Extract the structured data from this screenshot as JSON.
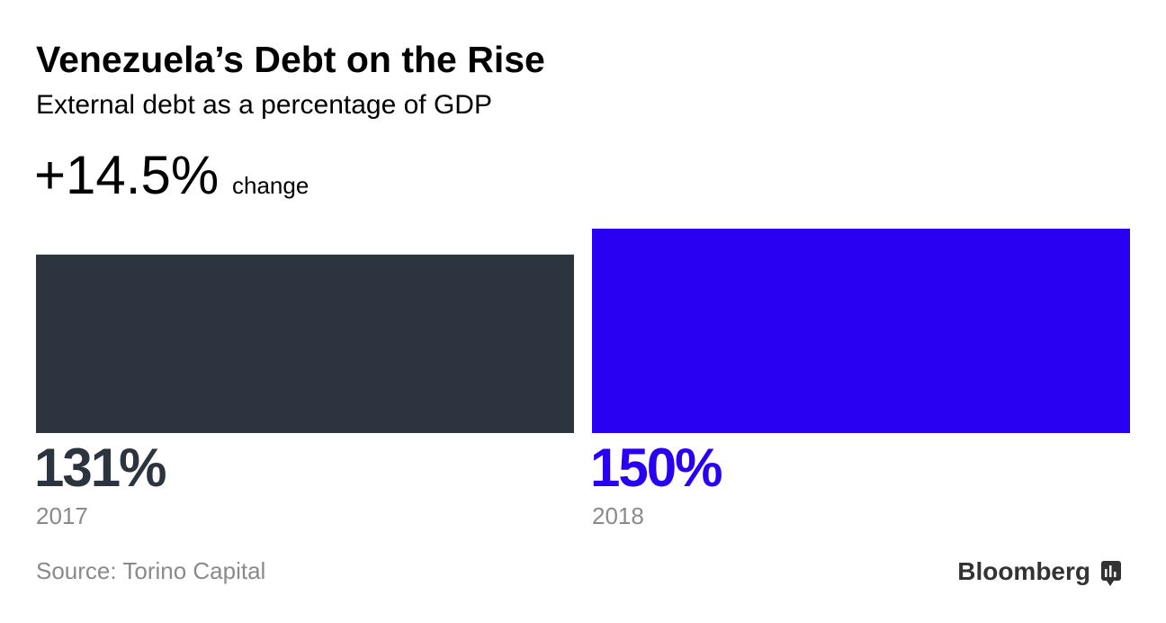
{
  "chart_data": {
    "type": "bar",
    "title": "Venezuela’s Debt on the Rise",
    "subtitle": "External debt as a percentage of GDP",
    "change_label": "+14.5%",
    "change_text": "change",
    "categories": [
      "2017",
      "2018"
    ],
    "values": [
      131,
      150
    ],
    "value_labels": [
      "131%",
      "150%"
    ],
    "colors": [
      "#2c353f",
      "#2a00f2"
    ],
    "source": "Source: Torino Capital",
    "brand": "Bloomberg"
  }
}
